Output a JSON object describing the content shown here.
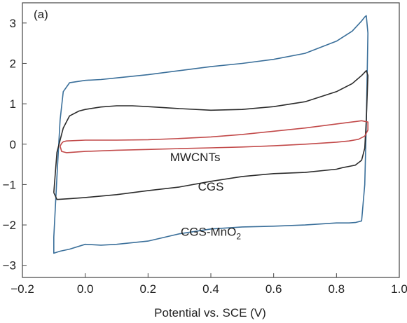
{
  "chart_data": {
    "type": "line",
    "panel_label": "(a)",
    "title": "",
    "xlabel": "Potential vs. SCE (V)",
    "ylabel": "",
    "xlim": [
      -0.2,
      1.0
    ],
    "ylim": [
      -3.3,
      3.5
    ],
    "x_ticks": [
      -0.2,
      0.0,
      0.2,
      0.4,
      0.6,
      0.8,
      1.0
    ],
    "x_tick_labels": [
      "−0.2",
      "0.0",
      "0.2",
      "0.4",
      "0.6",
      "0.8",
      "1.0"
    ],
    "y_ticks": [
      -3,
      -2,
      -1,
      0,
      1,
      2,
      3
    ],
    "y_tick_labels": [
      "−3",
      "−2",
      "−1",
      "0",
      "1",
      "2",
      "3"
    ],
    "grid": false,
    "annotations": [
      {
        "text": "MWCNTs",
        "x": 0.35,
        "y": -0.42
      },
      {
        "text": "CGS",
        "x": 0.4,
        "y": -1.15
      },
      {
        "text": "CGS-MnO",
        "sub": "2",
        "x": 0.4,
        "y": -2.27
      }
    ],
    "series": [
      {
        "name": "CGS-MnO2",
        "color": "#3a6f9a",
        "x": [
          -0.1,
          -0.09,
          -0.08,
          -0.07,
          -0.05,
          0.0,
          0.05,
          0.1,
          0.2,
          0.3,
          0.4,
          0.5,
          0.6,
          0.7,
          0.8,
          0.85,
          0.88,
          0.89,
          0.895,
          0.9,
          0.895,
          0.89,
          0.88,
          0.86,
          0.84,
          0.8,
          0.7,
          0.6,
          0.5,
          0.4,
          0.3,
          0.2,
          0.1,
          0.05,
          0.0,
          -0.05,
          -0.08,
          -0.1,
          -0.1
        ],
        "y": [
          -2.3,
          -0.8,
          0.6,
          1.3,
          1.52,
          1.58,
          1.6,
          1.64,
          1.72,
          1.82,
          1.92,
          2.0,
          2.1,
          2.25,
          2.55,
          2.8,
          3.05,
          3.15,
          3.18,
          2.75,
          0.5,
          -1.0,
          -1.9,
          -1.94,
          -1.95,
          -1.95,
          -2.0,
          -2.03,
          -2.05,
          -2.1,
          -2.22,
          -2.4,
          -2.48,
          -2.5,
          -2.48,
          -2.6,
          -2.65,
          -2.7,
          -2.3
        ]
      },
      {
        "name": "CGS",
        "color": "#2b2b2b",
        "x": [
          -0.1,
          -0.09,
          -0.07,
          -0.05,
          -0.02,
          0.0,
          0.05,
          0.1,
          0.15,
          0.2,
          0.3,
          0.4,
          0.5,
          0.6,
          0.7,
          0.8,
          0.85,
          0.88,
          0.895,
          0.9,
          0.895,
          0.89,
          0.88,
          0.86,
          0.84,
          0.82,
          0.8,
          0.7,
          0.6,
          0.5,
          0.4,
          0.3,
          0.2,
          0.1,
          0.0,
          -0.05,
          -0.09,
          -0.1
        ],
        "y": [
          -1.2,
          -0.2,
          0.4,
          0.7,
          0.82,
          0.86,
          0.92,
          0.95,
          0.95,
          0.93,
          0.88,
          0.84,
          0.86,
          0.93,
          1.05,
          1.3,
          1.5,
          1.7,
          1.82,
          1.7,
          0.6,
          -0.1,
          -0.4,
          -0.52,
          -0.55,
          -0.58,
          -0.62,
          -0.7,
          -0.73,
          -0.8,
          -0.92,
          -1.06,
          -1.15,
          -1.25,
          -1.32,
          -1.35,
          -1.37,
          -1.2
        ]
      },
      {
        "name": "MWCNTs",
        "color": "#c24a4a",
        "x": [
          -0.08,
          -0.075,
          -0.07,
          -0.06,
          0.0,
          0.1,
          0.2,
          0.3,
          0.4,
          0.5,
          0.6,
          0.7,
          0.8,
          0.85,
          0.88,
          0.9,
          0.9,
          0.89,
          0.87,
          0.84,
          0.8,
          0.7,
          0.6,
          0.5,
          0.4,
          0.3,
          0.2,
          0.1,
          0.0,
          -0.06,
          -0.075,
          -0.08
        ],
        "y": [
          -0.05,
          0.02,
          0.06,
          0.08,
          0.1,
          0.1,
          0.11,
          0.14,
          0.18,
          0.24,
          0.32,
          0.4,
          0.5,
          0.55,
          0.58,
          0.55,
          0.35,
          0.2,
          0.12,
          0.08,
          0.05,
          0.0,
          -0.04,
          -0.07,
          -0.09,
          -0.11,
          -0.13,
          -0.15,
          -0.18,
          -0.21,
          -0.18,
          -0.05
        ]
      }
    ]
  }
}
